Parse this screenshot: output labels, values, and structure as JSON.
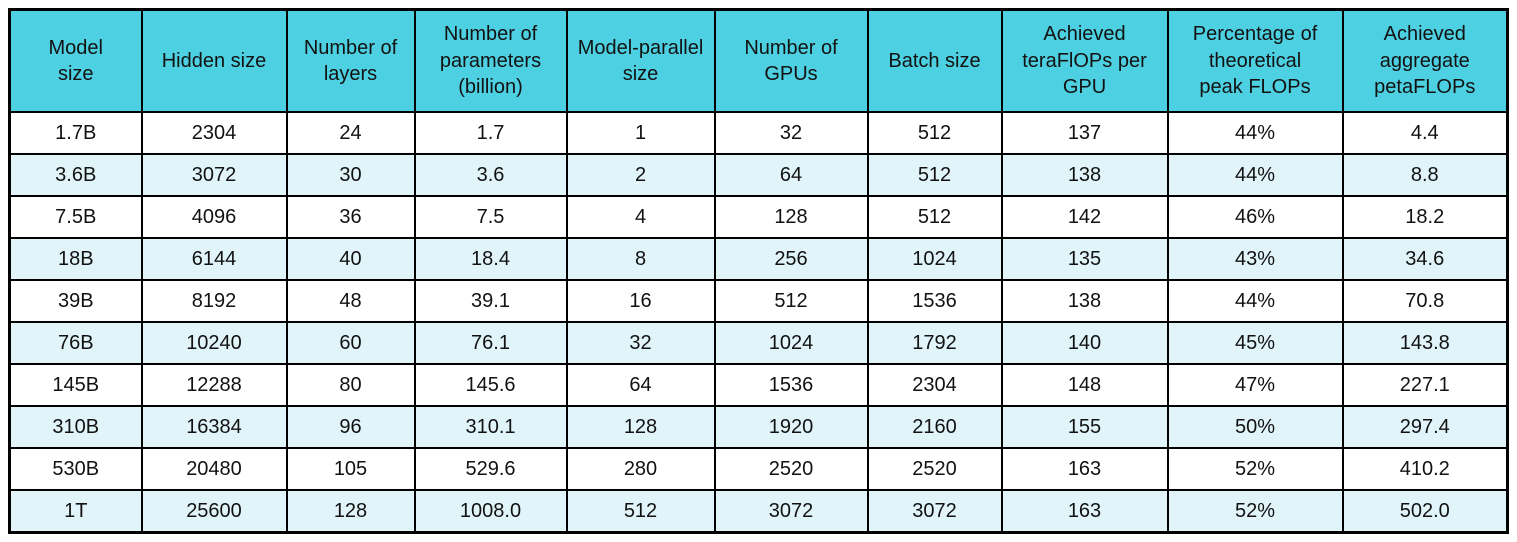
{
  "chart_data": {
    "type": "table",
    "columns": [
      "Model size",
      "Hidden size",
      "Number of layers",
      "Number of parameters (billion)",
      "Model-parallel size",
      "Number of GPUs",
      "Batch size",
      "Achieved teraFlOPs per GPU",
      "Percentage of theoretical peak FLOPs",
      "Achieved aggregate petaFLOPs"
    ],
    "columns_display": [
      "Model\nsize",
      "Hidden size",
      "Number of\nlayers",
      "Number of\nparameters\n(billion)",
      "Model-parallel\nsize",
      "Number of\nGPUs",
      "Batch size",
      "Achieved\nteraFlOPs per\nGPU",
      "Percentage of\ntheoretical\npeak FLOPs",
      "Achieved\naggregate\npetaFLOPs"
    ],
    "rows": [
      [
        "1.7B",
        "2304",
        "24",
        "1.7",
        "1",
        "32",
        "512",
        "137",
        "44%",
        "4.4"
      ],
      [
        "3.6B",
        "3072",
        "30",
        "3.6",
        "2",
        "64",
        "512",
        "138",
        "44%",
        "8.8"
      ],
      [
        "7.5B",
        "4096",
        "36",
        "7.5",
        "4",
        "128",
        "512",
        "142",
        "46%",
        "18.2"
      ],
      [
        "18B",
        "6144",
        "40",
        "18.4",
        "8",
        "256",
        "1024",
        "135",
        "43%",
        "34.6"
      ],
      [
        "39B",
        "8192",
        "48",
        "39.1",
        "16",
        "512",
        "1536",
        "138",
        "44%",
        "70.8"
      ],
      [
        "76B",
        "10240",
        "60",
        "76.1",
        "32",
        "1024",
        "1792",
        "140",
        "45%",
        "143.8"
      ],
      [
        "145B",
        "12288",
        "80",
        "145.6",
        "64",
        "1536",
        "2304",
        "148",
        "47%",
        "227.1"
      ],
      [
        "310B",
        "16384",
        "96",
        "310.1",
        "128",
        "1920",
        "2160",
        "155",
        "50%",
        "297.4"
      ],
      [
        "530B",
        "20480",
        "105",
        "529.6",
        "280",
        "2520",
        "2520",
        "163",
        "52%",
        "410.2"
      ],
      [
        "1T",
        "25600",
        "128",
        "1008.0",
        "512",
        "3072",
        "3072",
        "163",
        "52%",
        "502.0"
      ]
    ],
    "colors": {
      "header_bg": "#4dd0e1",
      "row_bg": "#ffffff",
      "row_stripe_bg": "#e0f4f9",
      "border": "#000000",
      "text": "#121212"
    },
    "legend": "none",
    "grid": "full-borders"
  }
}
